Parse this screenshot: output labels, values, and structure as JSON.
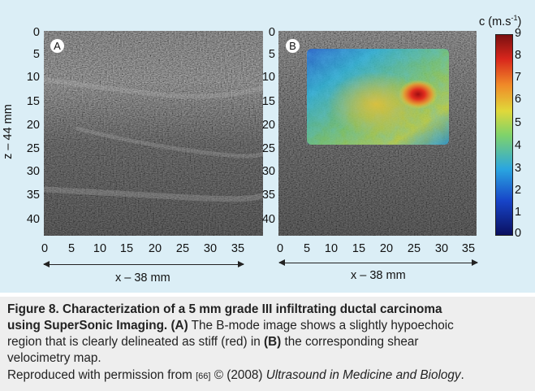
{
  "figure": {
    "panels": [
      {
        "label": "A",
        "image_desc": "B-mode ultrasound image"
      },
      {
        "label": "B",
        "image_desc": "B-mode image with shear velocity color overlay"
      }
    ],
    "y_ticks": [
      "0",
      "5",
      "10",
      "15",
      "20",
      "25",
      "30",
      "35",
      "40"
    ],
    "x_ticks": [
      "0",
      "5",
      "10",
      "15",
      "20",
      "25",
      "30",
      "35"
    ],
    "y_axis_title": "z – 44 mm",
    "x_axis_title_left": "x – 38 mm",
    "x_axis_title_right": "x – 38 mm",
    "colorbar": {
      "label": "c (m.s",
      "label_sup": "-1",
      "label_end": ")",
      "ticks": [
        "9",
        "8",
        "7",
        "6",
        "5",
        "4",
        "3",
        "2",
        "1",
        "0"
      ],
      "colors": [
        "#0a1060",
        "#1744c8",
        "#2aa6e0",
        "#7fd36a",
        "#e0d83a",
        "#f08a28",
        "#d8261c",
        "#7a1010"
      ]
    }
  },
  "caption": {
    "line1_bold": "Figure 8. Characterization of a 5 mm grade III infiltrating ductal carcinoma",
    "line2_bold": "using SuperSonic Imaging. ",
    "line2_b_A": "(A)",
    "line2_rest": " The B-mode image shows a slightly hypoechoic",
    "line3_a": "region that is clearly delineated as stiff (red) in ",
    "line3_b_B": "(B)",
    "line3_c": " the corresponding shear",
    "line4": "velocimetry map.",
    "line5_a": "Reproduced with permission from ",
    "line5_ref": "[66]",
    "line5_b": " © (2008) ",
    "line5_italic": "Ultrasound in Medicine and Biology",
    "line5_end": "."
  }
}
